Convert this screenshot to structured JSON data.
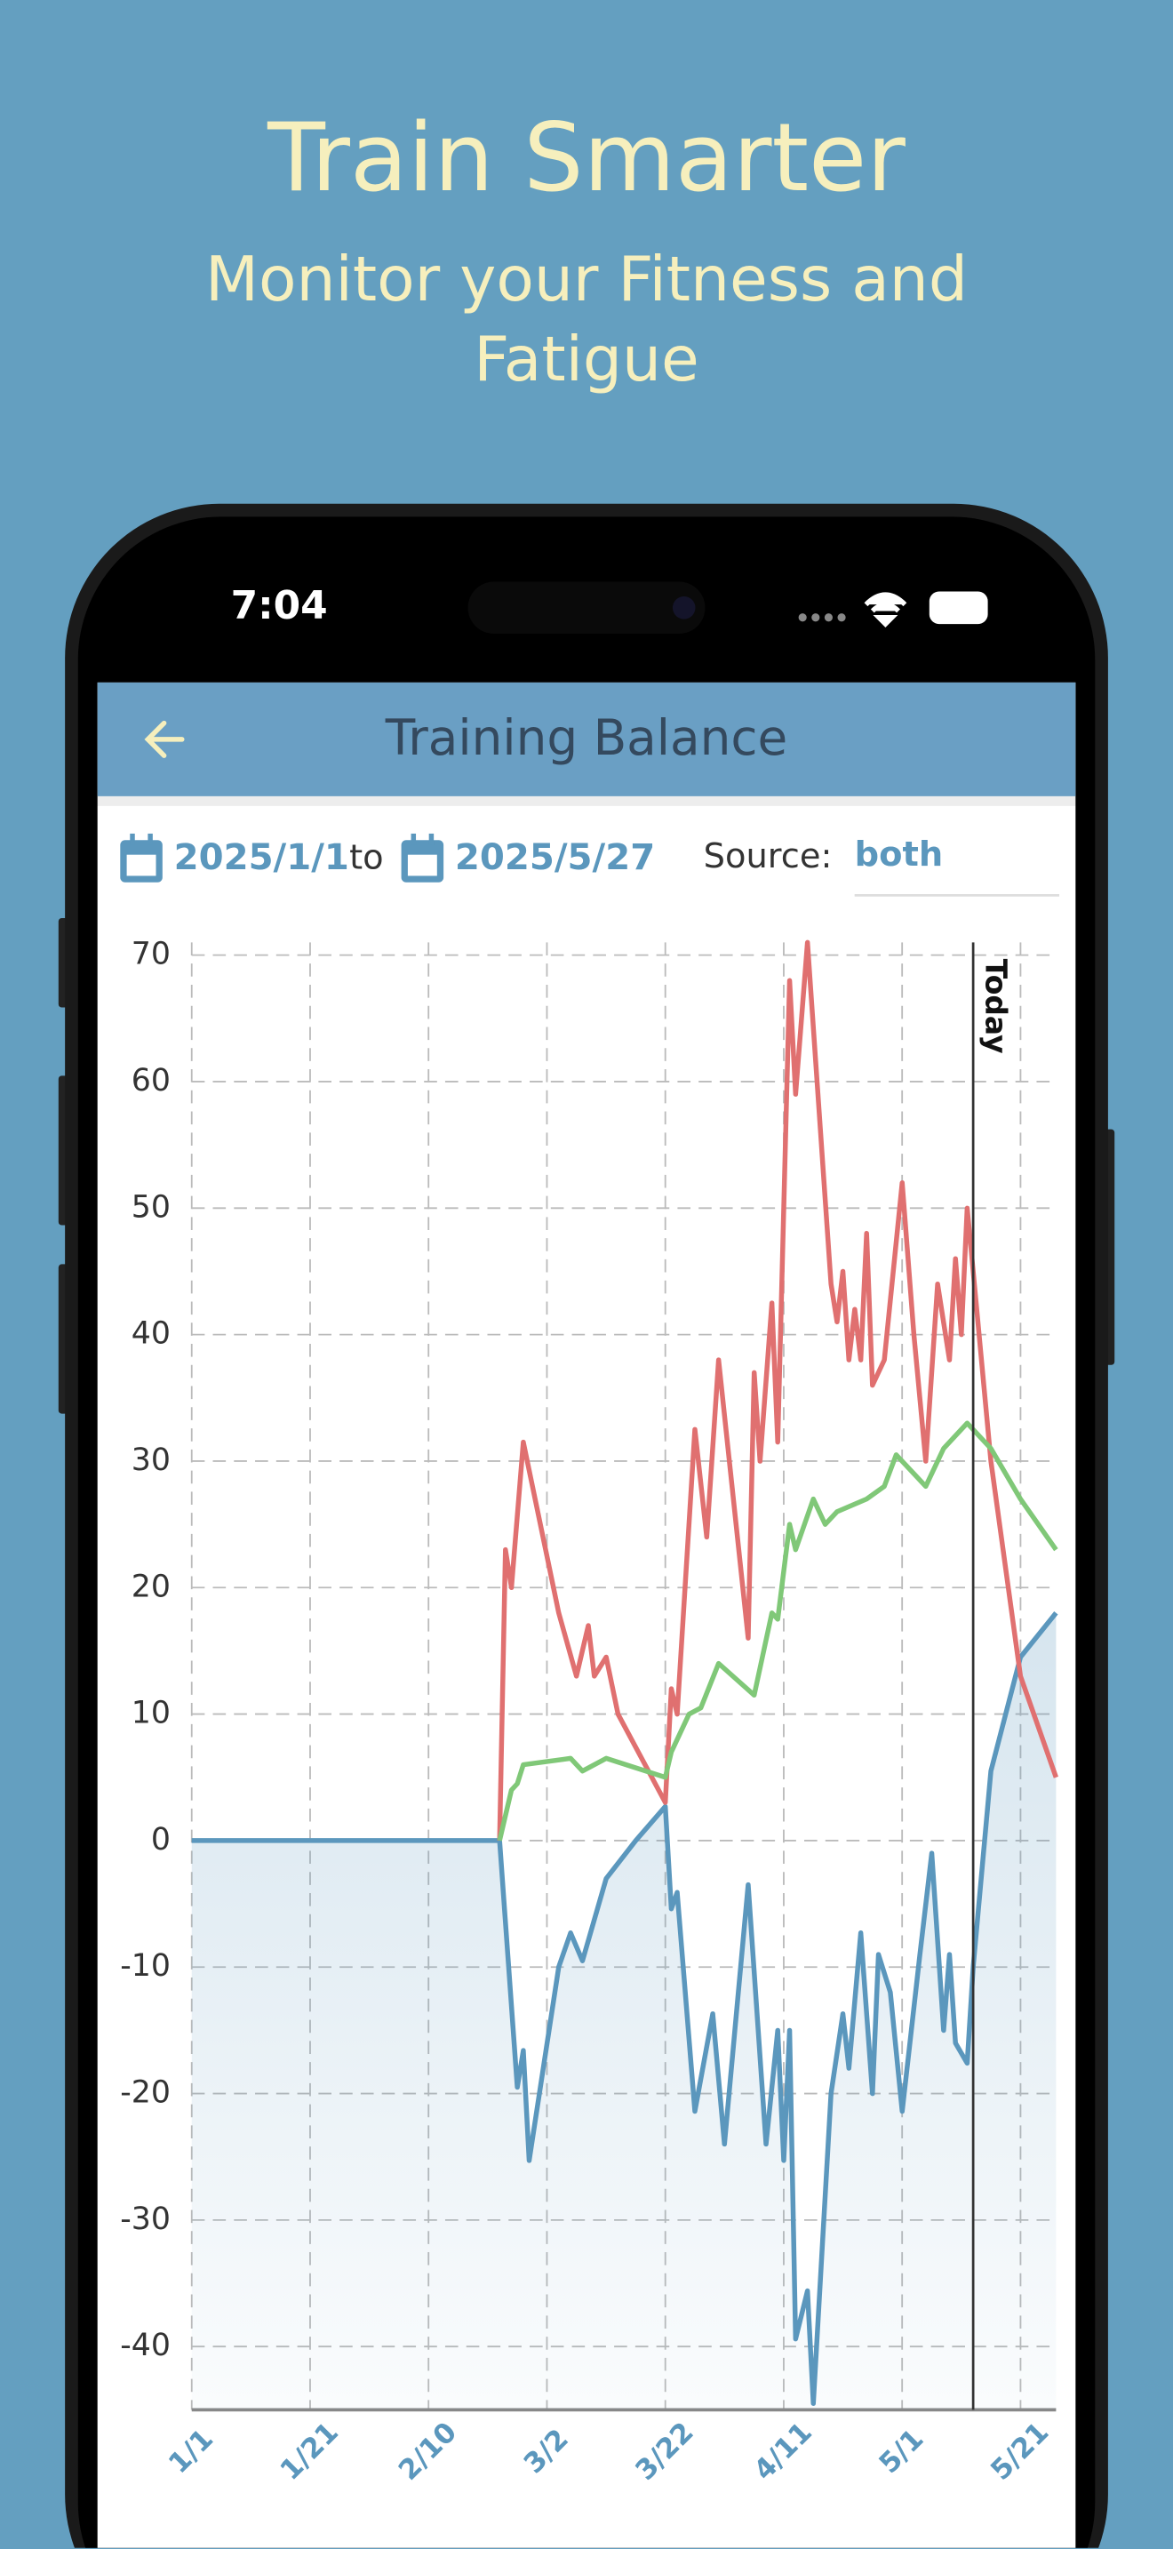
{
  "header": {
    "title": "Train Smarter",
    "subtitle": "Monitor your Fitness and Fatigue"
  },
  "status_bar": {
    "time": "7:04"
  },
  "app_bar": {
    "title": "Training Balance"
  },
  "filters": {
    "start": "2025/1/1",
    "to": "to",
    "end": "2025/5/27",
    "source_label": "Source:",
    "source": "both"
  },
  "chart_data": {
    "type": "line",
    "xlim": [
      "1/1",
      "5/27"
    ],
    "xticks": [
      "1/1",
      "1/21",
      "2/10",
      "3/2",
      "3/22",
      "4/11",
      "5/1",
      "5/21"
    ],
    "ylim": [
      -45,
      71
    ],
    "yticks": [
      70,
      60,
      50,
      40,
      30,
      20,
      10,
      0,
      -10,
      -20,
      -30,
      -40
    ],
    "grid": true,
    "annotations": [
      {
        "x": "5/13",
        "label": "Today"
      }
    ],
    "series": [
      {
        "color": "#5b97bd",
        "fill": true,
        "x": [
          "1/1",
          "2/22",
          "2/25",
          "2/26",
          "2/27",
          "3/4",
          "3/6",
          "3/8",
          "3/12",
          "3/17",
          "3/22",
          "3/23",
          "3/24",
          "3/27",
          "3/30",
          "4/1",
          "4/5",
          "4/8",
          "4/10",
          "4/11",
          "4/12",
          "4/13",
          "4/15",
          "4/16",
          "4/19",
          "4/21",
          "4/22",
          "4/24",
          "4/26",
          "4/27",
          "4/29",
          "5/1",
          "5/4",
          "5/6",
          "5/8",
          "5/9",
          "5/10",
          "5/12",
          "5/13",
          "5/16",
          "5/21",
          "5/27"
        ],
        "values": [
          0,
          0,
          -19.5,
          -16.6,
          -25.3,
          -10,
          -7.3,
          -9.5,
          -3,
          0,
          2.7,
          -5.4,
          -4.1,
          -21.4,
          -13.7,
          -24,
          -3.5,
          -24,
          -15,
          -25.3,
          -15,
          -39.4,
          -35.6,
          -44.5,
          -20,
          -13.7,
          -18,
          -7.3,
          -20,
          -9,
          -12,
          -21.4,
          -9,
          -1,
          -15,
          -9,
          -16,
          -17.6,
          -10,
          5.5,
          14.5,
          18
        ]
      },
      {
        "color": "#e07070",
        "x": [
          "2/22",
          "2/23",
          "2/24",
          "2/26",
          "3/4",
          "3/7",
          "3/9",
          "3/10",
          "3/12",
          "3/14",
          "3/22",
          "3/23",
          "3/24",
          "3/27",
          "3/29",
          "3/31",
          "4/5",
          "4/6",
          "4/7",
          "4/9",
          "4/10",
          "4/12",
          "4/13",
          "4/15",
          "4/19",
          "4/20",
          "4/21",
          "4/22",
          "4/23",
          "4/24",
          "4/25",
          "4/26",
          "4/28",
          "5/1",
          "5/3",
          "5/5",
          "5/7",
          "5/9",
          "5/10",
          "5/11",
          "5/12",
          "5/13",
          "5/16",
          "5/21",
          "5/27"
        ],
        "values": [
          0,
          23,
          20,
          31.5,
          18,
          13,
          17,
          13,
          14.5,
          10,
          3,
          12,
          10,
          32.5,
          24,
          38,
          16,
          37,
          30,
          42.5,
          31.5,
          68,
          59,
          71,
          44,
          41,
          45,
          38,
          42,
          38,
          48,
          36,
          38,
          52,
          40,
          30,
          44,
          38,
          46,
          40,
          50,
          45,
          30,
          13,
          5
        ]
      },
      {
        "color": "#80c878",
        "x": [
          "2/22",
          "2/24",
          "2/25",
          "2/26",
          "3/6",
          "3/8",
          "3/12",
          "3/22",
          "3/23",
          "3/26",
          "3/28",
          "3/31",
          "4/6",
          "4/9",
          "4/10",
          "4/12",
          "4/13",
          "4/16",
          "4/18",
          "4/20",
          "4/25",
          "4/28",
          "4/30",
          "5/5",
          "5/8",
          "5/12",
          "5/16",
          "5/21",
          "5/27"
        ],
        "values": [
          0,
          4,
          4.5,
          6,
          6.5,
          5.5,
          6.5,
          5,
          7,
          10,
          10.5,
          14,
          11.5,
          18,
          17.5,
          25,
          23,
          27,
          25,
          26,
          27,
          28,
          30.5,
          28,
          31,
          33,
          31,
          27,
          23
        ]
      }
    ]
  }
}
